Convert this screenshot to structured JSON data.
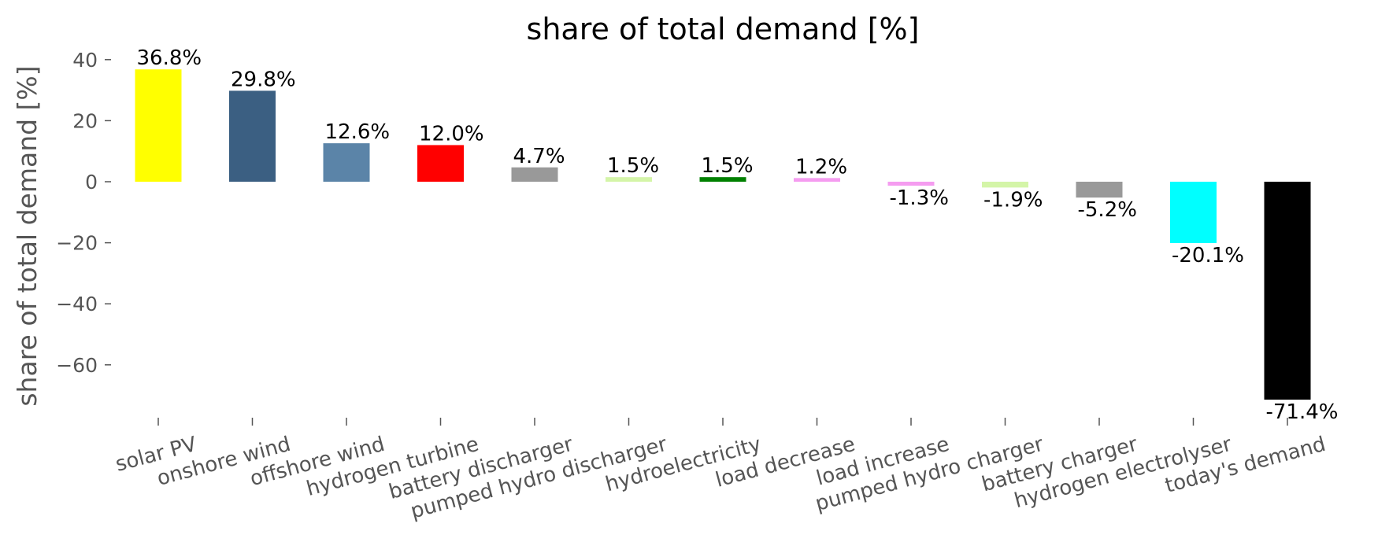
{
  "chart_data": {
    "type": "bar",
    "title": "share of total demand [%]",
    "xlabel": "",
    "ylabel": "share of total demand [%]",
    "ylim": [
      -78,
      43
    ],
    "yticks": [
      40,
      20,
      0,
      -20,
      -40,
      -60
    ],
    "ytick_labels": [
      "40",
      "20",
      "0",
      "−20",
      "−40",
      "−60"
    ],
    "grid": false,
    "categories": [
      "solar PV",
      "onshore wind",
      "offshore wind",
      "hydrogen turbine",
      "battery discharger",
      "pumped hydro discharger",
      "hydroelectricity",
      "load decrease",
      "load increase",
      "pumped hydro charger",
      "battery charger",
      "hydrogen electrolyser",
      "today's demand"
    ],
    "values": [
      36.8,
      29.8,
      12.6,
      12.0,
      4.7,
      1.5,
      1.5,
      1.2,
      -1.3,
      -1.9,
      -5.2,
      -20.1,
      -71.4
    ],
    "data_labels": [
      "36.8%",
      "29.8%",
      "12.6%",
      "12.0%",
      "4.7%",
      "1.5%",
      "1.5%",
      "1.2%",
      "-1.3%",
      "-1.9%",
      "-5.2%",
      "-20.1%",
      "-71.4%"
    ],
    "colors": [
      "#ffff00",
      "#3b5f82",
      "#5b84a8",
      "#ff0000",
      "#999999",
      "#d4f5a8",
      "#008000",
      "#f59cf0",
      "#f59cf0",
      "#d4f5a8",
      "#999999",
      "#00ffff",
      "#000000"
    ]
  }
}
